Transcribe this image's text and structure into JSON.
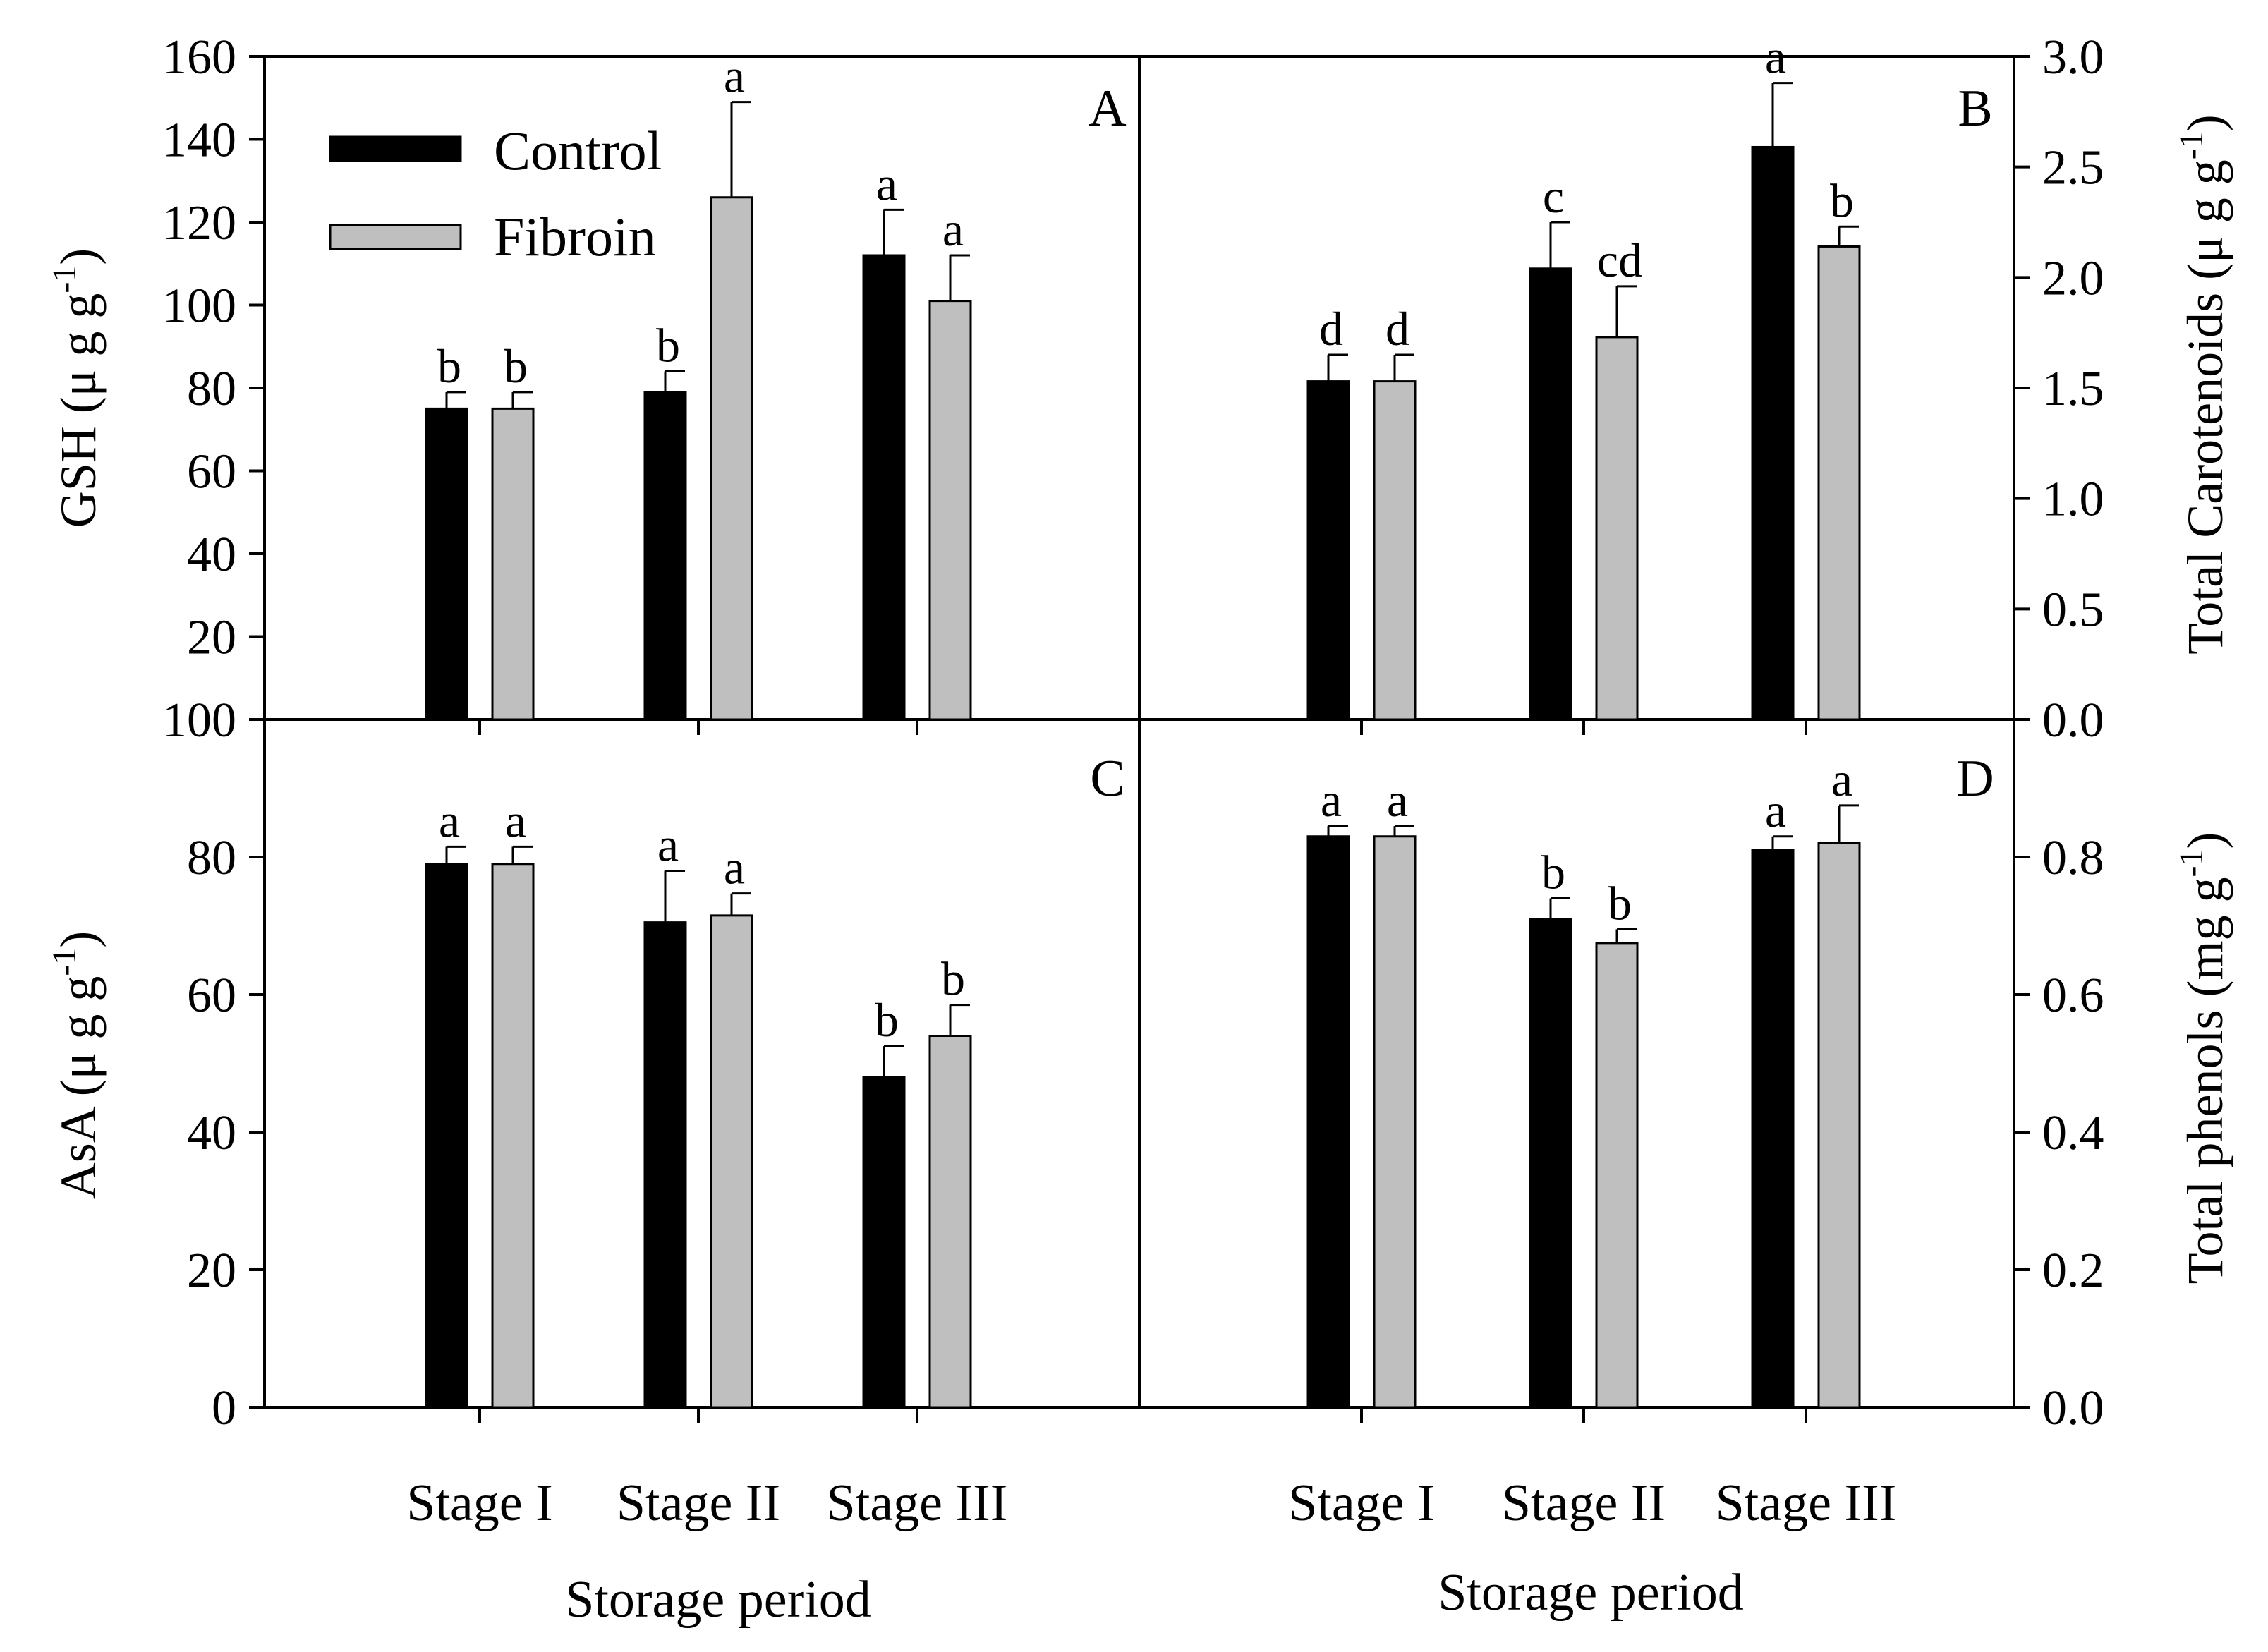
{
  "legend": {
    "entries": [
      {
        "name": "Control",
        "color": "#000000"
      },
      {
        "name": "Fibroin",
        "color": "#bfbfbf"
      }
    ]
  },
  "chart_data": [
    {
      "panel": "A",
      "type": "bar",
      "title": "",
      "ylabel": "GSH (μ g g",
      "ylabel_sup": "-1",
      "ylabel_close": ")",
      "ylim": [
        0,
        160
      ],
      "yticks": [
        "20",
        "40",
        "60",
        "80",
        "100",
        "120",
        "140",
        "160"
      ],
      "categories": [
        "Stage I",
        "Stage II",
        "Stage III"
      ],
      "series": [
        {
          "name": "Control",
          "color": "#000000",
          "values": [
            75,
            79,
            112
          ],
          "errors": [
            4,
            5,
            11
          ],
          "letters": [
            "b",
            "b",
            "a"
          ]
        },
        {
          "name": "Fibroin",
          "color": "#bfbfbf",
          "values": [
            75,
            126,
            101
          ],
          "errors": [
            4,
            23,
            11
          ],
          "letters": [
            "b",
            "a",
            "a"
          ]
        }
      ]
    },
    {
      "panel": "B",
      "type": "bar",
      "title": "",
      "ylabel": "Total Carotenoids (μ g g",
      "ylabel_sup": "-1",
      "ylabel_close": ")",
      "ylim": [
        0,
        3.0
      ],
      "yticks": [
        "0.0",
        "0.5",
        "1.0",
        "1.5",
        "2.0",
        "2.5",
        "3.0"
      ],
      "categories": [
        "Stage I",
        "Stage II",
        "Stage III"
      ],
      "series": [
        {
          "name": "Control",
          "color": "#000000",
          "values": [
            1.53,
            2.04,
            2.59
          ],
          "errors": [
            0.12,
            0.21,
            0.29
          ],
          "letters": [
            "d",
            "c",
            "a"
          ]
        },
        {
          "name": "Fibroin",
          "color": "#bfbfbf",
          "values": [
            1.53,
            1.73,
            2.14
          ],
          "errors": [
            0.12,
            0.23,
            0.09
          ],
          "letters": [
            "d",
            "cd",
            "b"
          ]
        }
      ]
    },
    {
      "panel": "C",
      "type": "bar",
      "title": "",
      "ylabel": "AsA  (μ g g",
      "ylabel_sup": "-1",
      "ylabel_close": ")",
      "xlabel": "Storage period",
      "ylim": [
        0,
        100
      ],
      "yticks": [
        "0",
        "20",
        "40",
        "60",
        "80",
        "100"
      ],
      "categories": [
        "Stage I",
        "Stage II",
        "Stage III"
      ],
      "series": [
        {
          "name": "Control",
          "color": "#000000",
          "values": [
            79,
            70.5,
            48
          ],
          "errors": [
            2.5,
            7.5,
            4.5
          ],
          "letters": [
            "a",
            "a",
            "b"
          ]
        },
        {
          "name": "Fibroin",
          "color": "#bfbfbf",
          "values": [
            79,
            71.5,
            54
          ],
          "errors": [
            2.5,
            3.2,
            4.5
          ],
          "letters": [
            "a",
            "a",
            "b"
          ]
        }
      ]
    },
    {
      "panel": "D",
      "type": "bar",
      "title": "",
      "ylabel": "Total phenols (mg g",
      "ylabel_sup": "-1",
      "ylabel_close": ")",
      "xlabel": "Storage period",
      "ylim": [
        0,
        1.0
      ],
      "yticks": [
        "0.0",
        "0.2",
        "0.4",
        "0.6",
        "0.8"
      ],
      "categories": [
        "Stage I",
        "Stage II",
        "Stage III"
      ],
      "series": [
        {
          "name": "Control",
          "color": "#000000",
          "values": [
            0.83,
            0.71,
            0.81
          ],
          "errors": [
            0.015,
            0.03,
            0.02
          ],
          "letters": [
            "a",
            "b",
            "a"
          ]
        },
        {
          "name": "Fibroin",
          "color": "#bfbfbf",
          "values": [
            0.83,
            0.675,
            0.82
          ],
          "errors": [
            0.015,
            0.02,
            0.055
          ],
          "letters": [
            "a",
            "b",
            "a"
          ]
        }
      ]
    }
  ]
}
